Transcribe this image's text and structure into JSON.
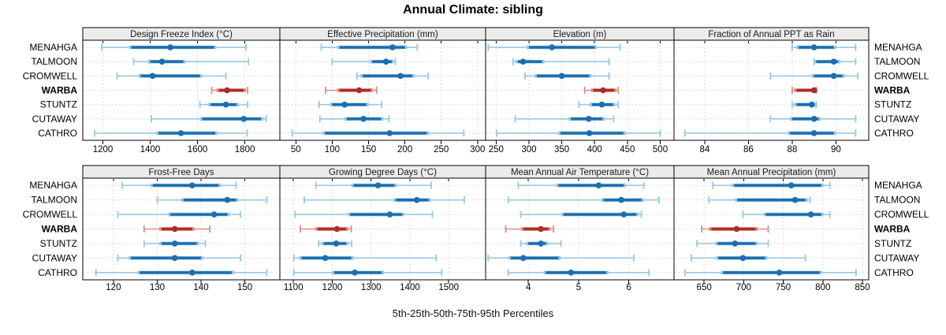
{
  "title": "Annual Climate: sibling",
  "caption": "5th-25th-50th-75th-95th Percentiles",
  "stations": [
    "MENAHGA",
    "TALMOON",
    "CROMWELL",
    "WARBA",
    "STUNTZ",
    "CUTAWAY",
    "CATHRO"
  ],
  "highlight_station": "WARBA",
  "colors": {
    "blue_dark": "#1b6eb0",
    "blue_light": "#9ac7e4",
    "red_dark": "#b02c24",
    "red_light": "#de8e84",
    "strip_bg": "#ebebeb",
    "grid": "#d2d2d2",
    "panel_border": "#000000"
  },
  "chart_data": [
    {
      "type": "percentile-dotplot",
      "row": 0,
      "col": 0,
      "title": "Design Freeze Index (°C)",
      "xlim": [
        1115,
        1948
      ],
      "ticks": [
        1200,
        1400,
        1600,
        1800
      ],
      "percentile_labels": [
        "p5",
        "p25",
        "p50",
        "p75",
        "p95"
      ],
      "series": [
        {
          "station": "MENAHGA",
          "p": [
            1195,
            1320,
            1485,
            1670,
            1805
          ]
        },
        {
          "station": "TALMOON",
          "p": [
            1330,
            1400,
            1450,
            1540,
            1815
          ]
        },
        {
          "station": "CROMWELL",
          "p": [
            1260,
            1360,
            1410,
            1610,
            1720
          ]
        },
        {
          "station": "WARBA",
          "p": [
            1660,
            1690,
            1725,
            1795,
            1812
          ]
        },
        {
          "station": "STUNTZ",
          "p": [
            1610,
            1655,
            1720,
            1765,
            1812
          ]
        },
        {
          "station": "CUTAWAY",
          "p": [
            1405,
            1620,
            1795,
            1868,
            1890
          ]
        },
        {
          "station": "CATHRO",
          "p": [
            1165,
            1435,
            1530,
            1675,
            1810
          ]
        }
      ]
    },
    {
      "type": "percentile-dotplot",
      "row": 0,
      "col": 1,
      "title": "Effective Precipitation (mm)",
      "xlim": [
        28,
        311
      ],
      "ticks": [
        50,
        100,
        150,
        200,
        250,
        300
      ],
      "series": [
        {
          "station": "MENAHGA",
          "p": [
            85,
            110,
            183,
            200,
            217
          ]
        },
        {
          "station": "TALMOON",
          "p": [
            100,
            155,
            174,
            182,
            187
          ]
        },
        {
          "station": "CROMWELL",
          "p": [
            134,
            142,
            194,
            210,
            232
          ]
        },
        {
          "station": "WARBA",
          "p": [
            91,
            110,
            137,
            153,
            161
          ]
        },
        {
          "station": "STUNTZ",
          "p": [
            82,
            100,
            117,
            147,
            168
          ]
        },
        {
          "station": "CUTAWAY",
          "p": [
            83,
            120,
            143,
            167,
            178
          ]
        },
        {
          "station": "CATHRO",
          "p": [
            45,
            90,
            179,
            230,
            281
          ]
        }
      ]
    },
    {
      "type": "percentile-dotplot",
      "row": 0,
      "col": 2,
      "title": "Elevation (m)",
      "xlim": [
        234,
        521
      ],
      "ticks": [
        250,
        300,
        350,
        400,
        450,
        500
      ],
      "series": [
        {
          "station": "MENAHGA",
          "p": [
            238,
            300,
            335,
            400,
            439
          ]
        },
        {
          "station": "TALMOON",
          "p": [
            276,
            283,
            291,
            320,
            422
          ]
        },
        {
          "station": "CROMWELL",
          "p": [
            294,
            312,
            350,
            392,
            422
          ]
        },
        {
          "station": "WARBA",
          "p": [
            385,
            398,
            413,
            430,
            436
          ]
        },
        {
          "station": "STUNTZ",
          "p": [
            376,
            396,
            411,
            428,
            436
          ]
        },
        {
          "station": "CUTAWAY",
          "p": [
            279,
            364,
            391,
            412,
            429
          ]
        },
        {
          "station": "CATHRO",
          "p": [
            251,
            348,
            392,
            444,
            500
          ]
        }
      ]
    },
    {
      "type": "percentile-dotplot",
      "row": 0,
      "col": 3,
      "title": "Fraction of Annual PPT as Rain",
      "xlim": [
        82.6,
        91.5
      ],
      "ticks": [
        84,
        86,
        88,
        90
      ],
      "series": [
        {
          "station": "MENAHGA",
          "p": [
            88,
            88.3,
            89,
            89.9,
            90.9
          ]
        },
        {
          "station": "TALMOON",
          "p": [
            89,
            89.1,
            89.9,
            90.1,
            90.9
          ]
        },
        {
          "station": "CROMWELL",
          "p": [
            87,
            89,
            89.9,
            90.3,
            91
          ]
        },
        {
          "station": "WARBA",
          "p": [
            88,
            88.2,
            89,
            89.05,
            89.1
          ]
        },
        {
          "station": "STUNTZ",
          "p": [
            88,
            88.2,
            88.9,
            89,
            89.1
          ]
        },
        {
          "station": "CUTAWAY",
          "p": [
            87,
            88,
            89,
            89.2,
            90.9
          ]
        },
        {
          "station": "CATHRO",
          "p": [
            83.1,
            87.9,
            89,
            89.9,
            90.9
          ]
        }
      ]
    },
    {
      "type": "percentile-dotplot",
      "row": 1,
      "col": 0,
      "title": "Frost-Free Days",
      "xlim": [
        113,
        158
      ],
      "ticks": [
        120,
        130,
        140,
        150
      ],
      "series": [
        {
          "station": "MENAHGA",
          "p": [
            122,
            129,
            138,
            144,
            148
          ]
        },
        {
          "station": "TALMOON",
          "p": [
            130,
            136,
            146,
            148,
            155
          ]
        },
        {
          "station": "CROMWELL",
          "p": [
            121,
            133,
            143,
            146,
            149
          ]
        },
        {
          "station": "WARBA",
          "p": [
            127,
            131,
            134,
            138,
            142
          ]
        },
        {
          "station": "STUNTZ",
          "p": [
            127,
            131,
            134,
            139,
            141
          ]
        },
        {
          "station": "CUTAWAY",
          "p": [
            121,
            124,
            134,
            140,
            149
          ]
        },
        {
          "station": "CATHRO",
          "p": [
            116,
            126,
            138,
            147,
            155
          ]
        }
      ]
    },
    {
      "type": "percentile-dotplot",
      "row": 1,
      "col": 1,
      "title": "Growing Degree Days (°C)",
      "xlim": [
        1065,
        1595
      ],
      "ticks": [
        1100,
        1200,
        1300,
        1400,
        1500
      ],
      "series": [
        {
          "station": "MENAHGA",
          "p": [
            1158,
            1255,
            1318,
            1360,
            1455
          ]
        },
        {
          "station": "TALMOON",
          "p": [
            1128,
            1364,
            1418,
            1448,
            1540
          ]
        },
        {
          "station": "CROMWELL",
          "p": [
            1104,
            1246,
            1348,
            1380,
            1458
          ]
        },
        {
          "station": "WARBA",
          "p": [
            1118,
            1162,
            1212,
            1236,
            1249
          ]
        },
        {
          "station": "STUNTZ",
          "p": [
            1165,
            1178,
            1210,
            1236,
            1250
          ]
        },
        {
          "station": "CUTAWAY",
          "p": [
            1101,
            1121,
            1182,
            1249,
            1468
          ]
        },
        {
          "station": "CATHRO",
          "p": [
            1101,
            1205,
            1258,
            1327,
            1482
          ]
        }
      ]
    },
    {
      "type": "percentile-dotplot",
      "row": 1,
      "col": 2,
      "title": "Mean Annual Air Temperature (°C)",
      "xlim": [
        3.15,
        6.9
      ],
      "ticks": [
        4,
        5,
        6
      ],
      "series": [
        {
          "station": "MENAHGA",
          "p": [
            3.8,
            4.6,
            5.4,
            5.9,
            6.3
          ]
        },
        {
          "station": "TALMOON",
          "p": [
            3.6,
            5.5,
            5.85,
            6.25,
            6.6
          ]
        },
        {
          "station": "CROMWELL",
          "p": [
            3.85,
            4.7,
            5.9,
            6.15,
            6.25
          ]
        },
        {
          "station": "WARBA",
          "p": [
            3.55,
            3.9,
            4.25,
            4.4,
            4.5
          ]
        },
        {
          "station": "STUNTZ",
          "p": [
            3.85,
            4.0,
            4.25,
            4.35,
            4.65
          ]
        },
        {
          "station": "CUTAWAY",
          "p": [
            3.2,
            3.65,
            3.9,
            4.6,
            6.1
          ]
        },
        {
          "station": "CATHRO",
          "p": [
            3.6,
            4.35,
            4.85,
            5.55,
            6.4
          ]
        }
      ]
    },
    {
      "type": "percentile-dotplot",
      "row": 1,
      "col": 3,
      "title": "Mean Annual Precipitation (mm)",
      "xlim": [
        612,
        858
      ],
      "ticks": [
        650,
        700,
        750,
        800,
        850
      ],
      "series": [
        {
          "station": "MENAHGA",
          "p": [
            661,
            688,
            760,
            798,
            809
          ]
        },
        {
          "station": "TALMOON",
          "p": [
            656,
            692,
            765,
            778,
            784
          ]
        },
        {
          "station": "CROMWELL",
          "p": [
            699,
            728,
            785,
            798,
            809
          ]
        },
        {
          "station": "WARBA",
          "p": [
            647,
            659,
            691,
            715,
            731
          ]
        },
        {
          "station": "STUNTZ",
          "p": [
            641,
            667,
            689,
            715,
            731
          ]
        },
        {
          "station": "CUTAWAY",
          "p": [
            634,
            668,
            699,
            727,
            778
          ]
        },
        {
          "station": "CATHRO",
          "p": [
            626,
            674,
            745,
            796,
            842
          ]
        }
      ]
    }
  ]
}
